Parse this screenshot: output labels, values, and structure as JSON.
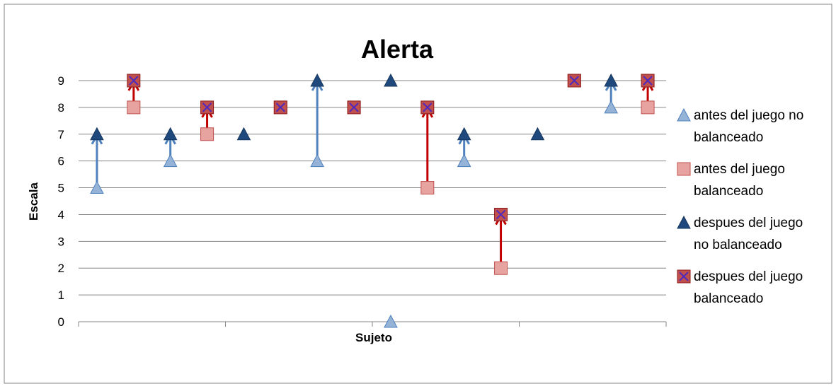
{
  "chart_data": {
    "type": "scatter",
    "title": "Alerta",
    "xlabel": "Sujeto",
    "ylabel": "Escala",
    "ylim": [
      0,
      9
    ],
    "yticks": [
      "0",
      "1",
      "2",
      "3",
      "4",
      "5",
      "6",
      "7",
      "8",
      "9"
    ],
    "grid": true,
    "legend_position": "right",
    "x_slots": 16,
    "series": [
      {
        "name": "antes del juego no balanceado",
        "marker": "triangle-light",
        "color": "#95B3D7",
        "points": [
          {
            "x": 1,
            "y": 5
          },
          {
            "x": 3,
            "y": 6
          },
          {
            "x": 7,
            "y": 6
          },
          {
            "x": 9,
            "y": 0
          },
          {
            "x": 11,
            "y": 6
          },
          {
            "x": 15,
            "y": 8
          }
        ]
      },
      {
        "name": "antes del juego balanceado",
        "marker": "square-light",
        "color": "#E6A3A0",
        "points": [
          {
            "x": 2,
            "y": 8
          },
          {
            "x": 4,
            "y": 7
          },
          {
            "x": 6,
            "y": 8
          },
          {
            "x": 8,
            "y": 8
          },
          {
            "x": 10,
            "y": 5
          },
          {
            "x": 12,
            "y": 2
          },
          {
            "x": 14,
            "y": 9
          },
          {
            "x": 16,
            "y": 8
          }
        ]
      },
      {
        "name": "despues del juego no balanceado",
        "marker": "triangle-dark",
        "color": "#1F497D",
        "points": [
          {
            "x": 1,
            "y": 7
          },
          {
            "x": 3,
            "y": 7
          },
          {
            "x": 5,
            "y": 7
          },
          {
            "x": 7,
            "y": 9
          },
          {
            "x": 9,
            "y": 9
          },
          {
            "x": 11,
            "y": 7
          },
          {
            "x": 13,
            "y": 7
          },
          {
            "x": 15,
            "y": 9
          }
        ]
      },
      {
        "name": "despues del juego balanceado",
        "marker": "square-x",
        "color": "#C0504D",
        "points": [
          {
            "x": 2,
            "y": 9
          },
          {
            "x": 4,
            "y": 8
          },
          {
            "x": 6,
            "y": 8
          },
          {
            "x": 8,
            "y": 8
          },
          {
            "x": 10,
            "y": 8
          },
          {
            "x": 12,
            "y": 4
          },
          {
            "x": 14,
            "y": 9
          },
          {
            "x": 16,
            "y": 9
          }
        ]
      }
    ],
    "legend": [
      {
        "line1": "antes del juego no",
        "line2": "balanceado"
      },
      {
        "line1": "antes del juego",
        "line2": "balanceado"
      },
      {
        "line1": "despues del juego",
        "line2": "no balanceado"
      },
      {
        "line1": "despues del juego",
        "line2": "balanceado"
      }
    ],
    "arrows": [
      {
        "x": 1,
        "from": 5,
        "to": 7,
        "color": "#4F81BD"
      },
      {
        "x": 2,
        "from": 8,
        "to": 9,
        "color": "#C00000"
      },
      {
        "x": 3,
        "from": 6,
        "to": 7,
        "color": "#4F81BD"
      },
      {
        "x": 4,
        "from": 7,
        "to": 8,
        "color": "#C00000"
      },
      {
        "x": 7,
        "from": 6,
        "to": 9,
        "color": "#4F81BD"
      },
      {
        "x": 10,
        "from": 5,
        "to": 8,
        "color": "#C00000"
      },
      {
        "x": 11,
        "from": 6,
        "to": 7,
        "color": "#4F81BD"
      },
      {
        "x": 12,
        "from": 2,
        "to": 4,
        "color": "#C00000"
      },
      {
        "x": 15,
        "from": 8,
        "to": 9,
        "color": "#4F81BD"
      },
      {
        "x": 16,
        "from": 8,
        "to": 9,
        "color": "#C00000"
      }
    ]
  }
}
